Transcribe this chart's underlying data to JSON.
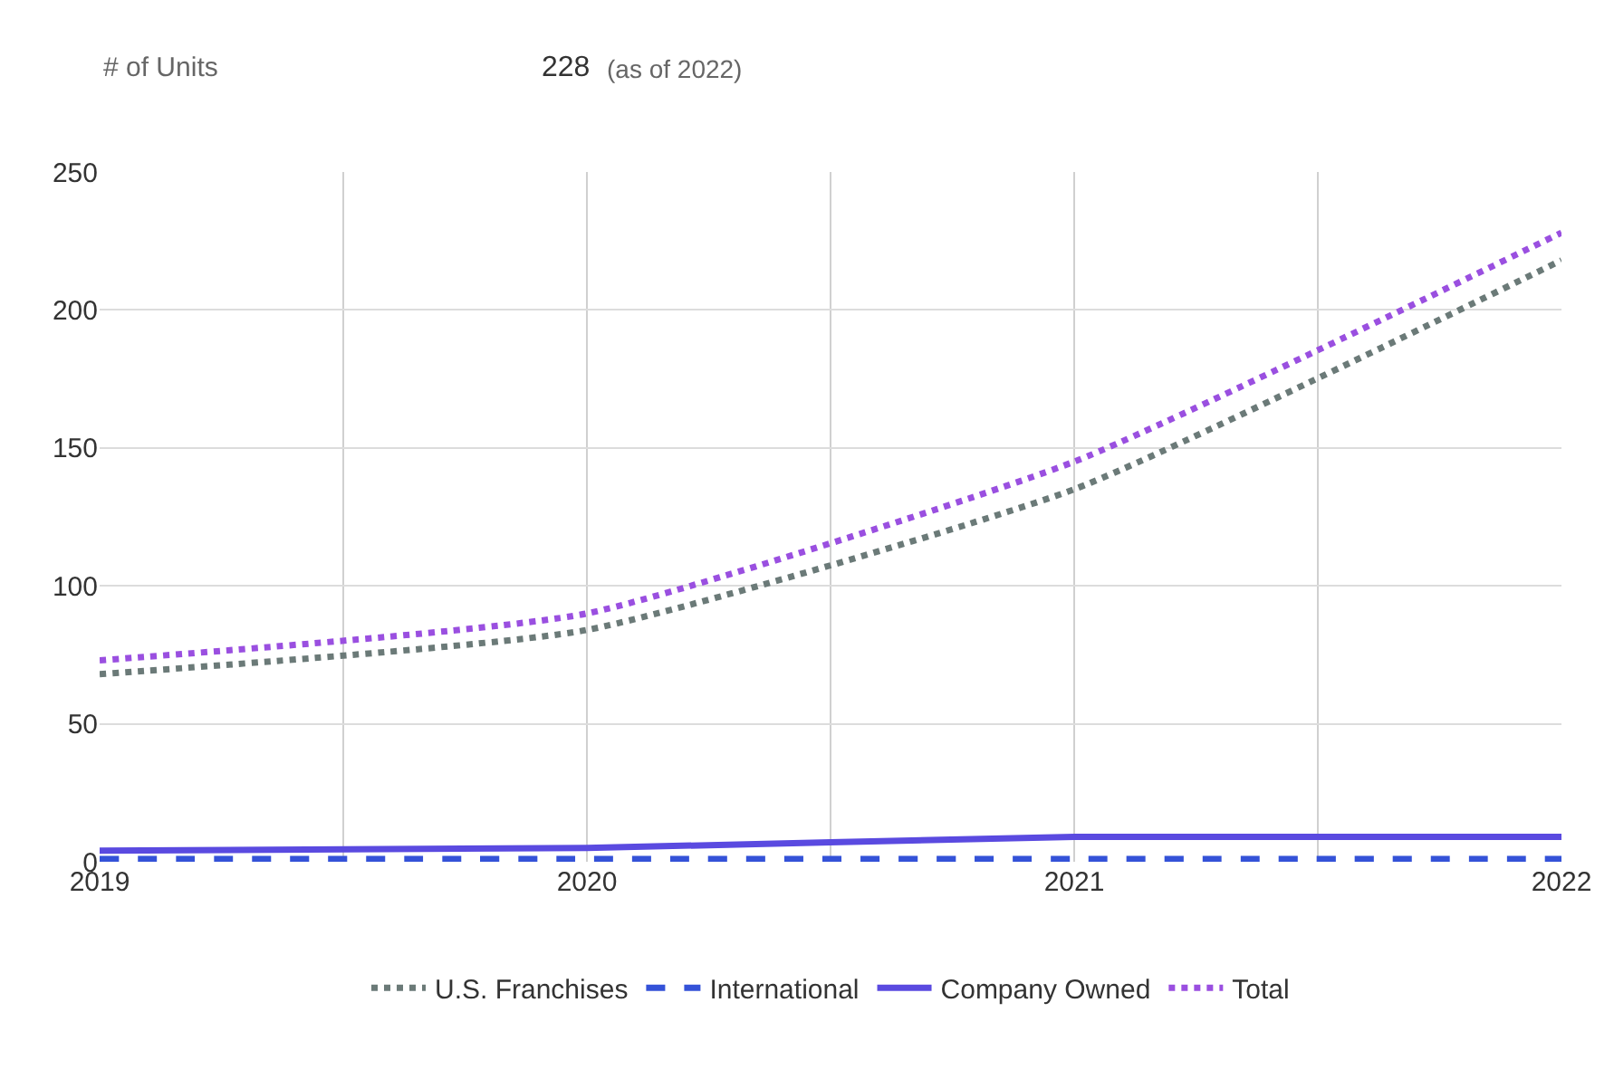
{
  "chart_data": {
    "type": "line",
    "annotations": [
      "# of Units",
      "228",
      "(as of 2022)"
    ],
    "x": [
      2019,
      2020,
      2021,
      2022
    ],
    "series": [
      {
        "name": "U.S. Franchises",
        "color": "#6b7a78",
        "line_style": "dotted",
        "values": [
          68,
          84,
          135,
          218
        ]
      },
      {
        "name": "International",
        "color": "#3452d8",
        "line_style": "dashed",
        "values": [
          1,
          1,
          1,
          1
        ]
      },
      {
        "name": "Company Owned",
        "color": "#5a4ae0",
        "line_style": "solid",
        "values": [
          4,
          5,
          9,
          9
        ]
      },
      {
        "name": "Total",
        "color": "#9a4fe0",
        "line_style": "dotted",
        "values": [
          73,
          90,
          145,
          228
        ]
      }
    ],
    "xlim": [
      2019,
      2022
    ],
    "xticks": [
      2019,
      {
        "value": 2019.5,
        "label": null
      },
      2020,
      {
        "value": 2020.5,
        "label": null
      },
      2021,
      {
        "value": 2021.5,
        "label": null
      },
      2022
    ],
    "ylim": [
      0,
      250
    ],
    "yticks": [
      0,
      50,
      100,
      150,
      200,
      250
    ],
    "grid": true,
    "legend": "bottom",
    "marker": "none"
  }
}
